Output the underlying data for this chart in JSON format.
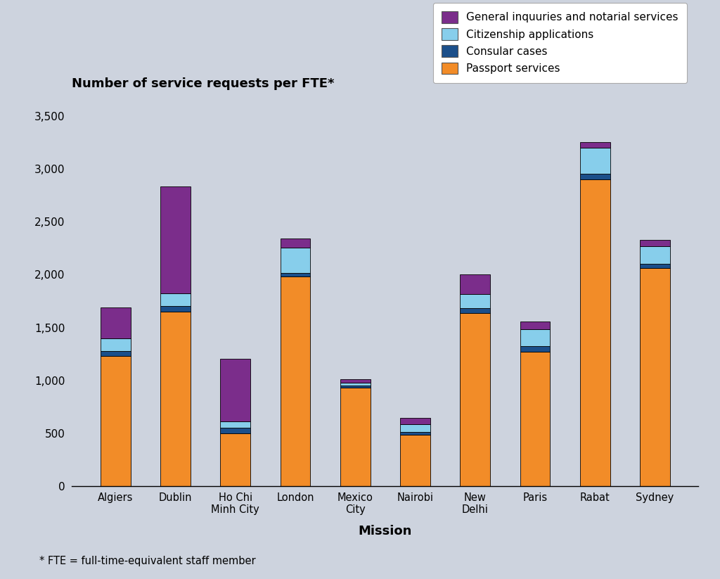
{
  "categories": [
    "Algiers",
    "Dublin",
    "Ho Chi\nMinh City",
    "London",
    "Mexico\nCity",
    "Nairobi",
    "New\nDelhi",
    "Paris",
    "Rabat",
    "Sydney"
  ],
  "passport_services": [
    1230,
    1650,
    500,
    1980,
    930,
    490,
    1640,
    1270,
    2900,
    2060
  ],
  "consular_cases": [
    50,
    50,
    55,
    35,
    20,
    25,
    45,
    55,
    50,
    40
  ],
  "citizenship_applications": [
    120,
    120,
    60,
    240,
    30,
    70,
    130,
    160,
    250,
    165
  ],
  "general_inquiries": [
    290,
    1010,
    590,
    85,
    30,
    60,
    185,
    75,
    50,
    65
  ],
  "colors": {
    "passport_services": "#F28C28",
    "consular_cases": "#1B4F8A",
    "citizenship_applications": "#87CEEB",
    "general_inquiries": "#7B2D8B"
  },
  "title": "Number of service requests per FTE*",
  "xlabel": "Mission",
  "ylim": [
    0,
    3500
  ],
  "yticks": [
    0,
    500,
    1000,
    1500,
    2000,
    2500,
    3000,
    3500
  ],
  "background_color": "#CDD3DE",
  "legend_labels": [
    "General inquuries and notarial services",
    "Citizenship applications",
    "Consular cases",
    "Passport services"
  ],
  "footnote": "* FTE = full-time-equivalent staff member"
}
